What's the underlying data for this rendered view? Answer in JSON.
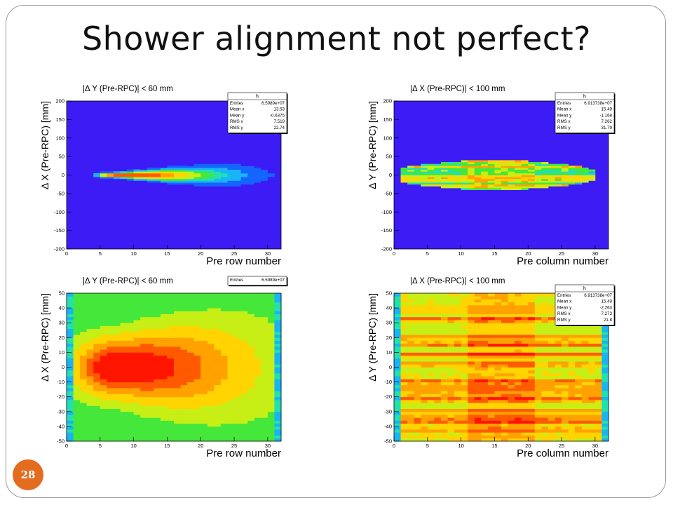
{
  "slide": {
    "title": "Shower alignment not perfect?",
    "page_number": "28"
  },
  "colors": {
    "background_purple": "#3d1bf5",
    "accent": "#e36c1f",
    "palette": [
      "#3d1bf5",
      "#1565ff",
      "#18b4f7",
      "#22e0b0",
      "#45e83a",
      "#c7ef16",
      "#ffd400",
      "#ffa200",
      "#ff5a00",
      "#ff1500"
    ]
  },
  "chart_data": [
    {
      "id": "tl",
      "type": "heatmap",
      "title": "|Δ Y (Pre-RPC)| < 60 mm",
      "xlabel": "Pre row number",
      "ylabel": "Δ X (Pre-RPC) [mm]",
      "xlim": [
        0,
        32
      ],
      "ylim": [
        -200,
        200
      ],
      "xticks": [
        "0",
        "5",
        "10",
        "15",
        "20",
        "25",
        "30"
      ],
      "yticks": [
        "200",
        "150",
        "100",
        "50",
        "0",
        "-50",
        "-100",
        "-150",
        "-200"
      ],
      "stats_box": {
        "name": "h",
        "rows": [
          {
            "label": "Entries",
            "value": "6.5989e+07"
          },
          {
            "label": "Mean x",
            "value": "13.53"
          },
          {
            "label": "Mean y",
            "value": "-0.6375"
          },
          {
            "label": "RMS x",
            "value": "7.519"
          },
          {
            "label": "RMS y",
            "value": "22.74"
          }
        ]
      },
      "distribution": {
        "peak_x": 7,
        "peak_y": 0,
        "spread_y": [
          4,
          28
        ],
        "x_extent": [
          2,
          31
        ]
      }
    },
    {
      "id": "tr",
      "type": "heatmap",
      "title": "|Δ X (Pre-RPC)| < 100 mm",
      "xlabel": "Pre column number",
      "ylabel": "Δ Y (Pre-RPC) [mm]",
      "xlim": [
        0,
        32
      ],
      "ylim": [
        -200,
        200
      ],
      "xticks": [
        "0",
        "5",
        "10",
        "15",
        "20",
        "25",
        "30"
      ],
      "yticks": [
        "200",
        "150",
        "100",
        "50",
        "0",
        "-50",
        "-100",
        "-150",
        "-200"
      ],
      "stats_box": {
        "name": "h",
        "rows": [
          {
            "label": "Entries",
            "value": "6.913738e+07"
          },
          {
            "label": "Mean x",
            "value": "15.49"
          },
          {
            "label": "Mean y",
            "value": "-1.168"
          },
          {
            "label": "RMS x",
            "value": "7.262"
          },
          {
            "label": "RMS y",
            "value": "31.79"
          }
        ]
      },
      "distribution": {
        "peak_x": 15,
        "peak_y": 0,
        "y_extent": [
          -45,
          45
        ],
        "x_extent": [
          1,
          30
        ]
      }
    },
    {
      "id": "bl",
      "type": "heatmap",
      "title": "|Δ Y (Pre-RPC)| < 60 mm",
      "xlabel": "Pre row number",
      "ylabel": "Δ X (Pre-RPC) [mm]",
      "xlim": [
        0,
        32
      ],
      "ylim": [
        -50,
        50
      ],
      "xticks": [
        "0",
        "5",
        "10",
        "15",
        "20",
        "25",
        "30"
      ],
      "yticks": [
        "50",
        "40",
        "30",
        "20",
        "10",
        "0",
        "-10",
        "-20",
        "-30",
        "-40",
        "-50"
      ],
      "stats_box": {
        "name": "",
        "rows": [
          {
            "label": "Entries",
            "value": "6.5989e+07"
          }
        ]
      },
      "distribution": {
        "peak_x": 7,
        "peak_y": 0,
        "spread_y": [
          12,
          45
        ],
        "x_extent": [
          0,
          32
        ]
      }
    },
    {
      "id": "br",
      "type": "heatmap",
      "title": "|Δ X (Pre-RPC)| < 100 mm",
      "xlabel": "Pre column number",
      "ylabel": "Δ Y (Pre-RPC) [mm]",
      "xlim": [
        0,
        32
      ],
      "ylim": [
        -50,
        50
      ],
      "xticks": [
        "0",
        "5",
        "10",
        "15",
        "20",
        "25",
        "30"
      ],
      "yticks": [
        "50",
        "40",
        "30",
        "20",
        "10",
        "0",
        "-10",
        "-20",
        "-30",
        "-40",
        "-50"
      ],
      "stats_box": {
        "name": "h",
        "rows": [
          {
            "label": "Entries",
            "value": "6.913738e+07"
          },
          {
            "label": "Mean x",
            "value": "15.49"
          },
          {
            "label": "Mean y",
            "value": "-2.263"
          },
          {
            "label": "RMS x",
            "value": "7.273"
          },
          {
            "label": "RMS y",
            "value": "21.8"
          }
        ]
      },
      "distribution": {
        "peak_x": 15,
        "peak_y": 0,
        "spread_y": [
          60,
          60
        ],
        "x_extent": [
          0,
          32
        ]
      }
    }
  ]
}
